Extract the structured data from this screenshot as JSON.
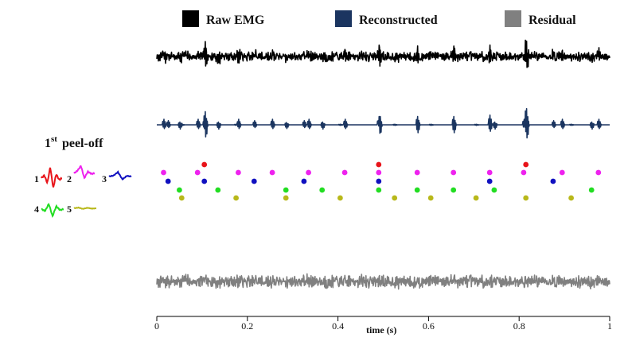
{
  "legend": {
    "items": [
      {
        "label": "Raw EMG",
        "color": "#000000"
      },
      {
        "label": "Reconstructed",
        "color": "#1b3560"
      },
      {
        "label": "Residual",
        "color": "#808080"
      }
    ]
  },
  "peel_off": {
    "ordinal": "1",
    "superscript": "st",
    "title": "peel-off",
    "units": [
      {
        "label": "1",
        "color": "#e8141a"
      },
      {
        "label": "2",
        "color": "#ee22ee"
      },
      {
        "label": "3",
        "color": "#1010c0"
      },
      {
        "label": "4",
        "color": "#22dd22"
      },
      {
        "label": "5",
        "color": "#b8b81a"
      }
    ]
  },
  "spike_trains": [
    {
      "unit": "1",
      "times": [
        0.105,
        0.49,
        0.815
      ]
    },
    {
      "unit": "2",
      "times": [
        0.015,
        0.09,
        0.18,
        0.255,
        0.335,
        0.415,
        0.49,
        0.575,
        0.655,
        0.735,
        0.81,
        0.895,
        0.975
      ]
    },
    {
      "unit": "3",
      "times": [
        0.025,
        0.105,
        0.215,
        0.325,
        0.49,
        0.735,
        0.875
      ]
    },
    {
      "unit": "4",
      "times": [
        0.05,
        0.135,
        0.285,
        0.365,
        0.49,
        0.575,
        0.655,
        0.745,
        0.96
      ]
    },
    {
      "unit": "5",
      "times": [
        0.055,
        0.175,
        0.285,
        0.405,
        0.525,
        0.605,
        0.705,
        0.815,
        0.915
      ]
    }
  ],
  "axis": {
    "title": "time (s)",
    "range": [
      0,
      1
    ],
    "ticks": [
      "0",
      "0.2",
      "0.4",
      "0.6",
      "0.8",
      "1"
    ]
  }
}
